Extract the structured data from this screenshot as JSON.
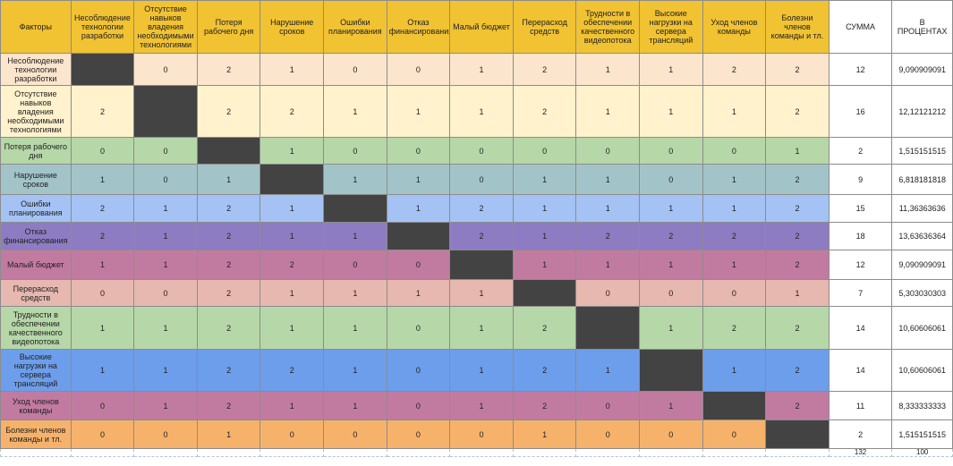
{
  "table": {
    "factors_header": "Факторы",
    "columns": [
      "Несоблюдение технологии разработки",
      "Отсутствие навыков владения необходимыми технологиями",
      "Потеря рабочего дня",
      "Нарушение сроков",
      "Ошибки планирования",
      "Отказ финансирования",
      "Малый бюджет",
      "Перерасход средств",
      "Трудности в обеспечении качественного видеопотока",
      "Высокие нагрузки на сервера трансляций",
      "Уход членов команды",
      "Болезни членов команды и тл."
    ],
    "sum_header": "СУММА",
    "percent_header": "В ПРОЦЕНТАХ",
    "rows": [
      {
        "label": "Несоблюдение технологии разработки",
        "color": "#fce5cd",
        "cells": [
          "",
          "0",
          "2",
          "1",
          "0",
          "0",
          "1",
          "2",
          "1",
          "1",
          "2",
          "2"
        ],
        "sum": "12",
        "percent": "9,090909091"
      },
      {
        "label": "Отсутствие навыков владения необходимыми технологиями",
        "color": "#fff2cc",
        "cells": [
          "2",
          "",
          "2",
          "2",
          "1",
          "1",
          "1",
          "2",
          "1",
          "1",
          "1",
          "2"
        ],
        "sum": "16",
        "percent": "12,12121212"
      },
      {
        "label": "Потеря рабочего дня",
        "color": "#b6d7a8",
        "cells": [
          "0",
          "0",
          "",
          "1",
          "0",
          "0",
          "0",
          "0",
          "0",
          "0",
          "0",
          "1"
        ],
        "sum": "2",
        "percent": "1,515151515"
      },
      {
        "label": "Нарушение сроков",
        "color": "#a2c4c9",
        "cells": [
          "1",
          "0",
          "1",
          "",
          "1",
          "1",
          "0",
          "1",
          "1",
          "0",
          "1",
          "2"
        ],
        "sum": "9",
        "percent": "6,818181818"
      },
      {
        "label": "Ошибки планирования",
        "color": "#a4c2f4",
        "cells": [
          "2",
          "1",
          "2",
          "1",
          "",
          "1",
          "2",
          "1",
          "1",
          "1",
          "1",
          "2"
        ],
        "sum": "15",
        "percent": "11,36363636"
      },
      {
        "label": "Отказ финансирования",
        "color": "#8e7cc3",
        "cells": [
          "2",
          "1",
          "2",
          "1",
          "1",
          "",
          "2",
          "1",
          "2",
          "2",
          "2",
          "2"
        ],
        "sum": "18",
        "percent": "13,63636364"
      },
      {
        "label": "Малый бюджет",
        "color": "#c27ba0",
        "cells": [
          "1",
          "1",
          "2",
          "2",
          "0",
          "0",
          "",
          "1",
          "1",
          "1",
          "1",
          "2"
        ],
        "sum": "12",
        "percent": "9,090909091"
      },
      {
        "label": "Перерасход средств",
        "color": "#e6b8af",
        "cells": [
          "0",
          "0",
          "2",
          "1",
          "1",
          "1",
          "1",
          "",
          "0",
          "0",
          "0",
          "1"
        ],
        "sum": "7",
        "percent": "5,303030303"
      },
      {
        "label": "Трудности в обеспечении качественного видеопотока",
        "color": "#b6d7a8",
        "cells": [
          "1",
          "1",
          "2",
          "1",
          "1",
          "0",
          "1",
          "2",
          "",
          "1",
          "2",
          "2"
        ],
        "sum": "14",
        "percent": "10,60606061"
      },
      {
        "label": "Высокие нагрузки на сервера трансляций",
        "color": "#6d9eeb",
        "cells": [
          "1",
          "1",
          "2",
          "2",
          "1",
          "0",
          "1",
          "2",
          "1",
          "",
          "1",
          "2"
        ],
        "sum": "14",
        "percent": "10,60606061"
      },
      {
        "label": "Уход членов команды",
        "color": "#c27ba0",
        "cells": [
          "0",
          "1",
          "2",
          "1",
          "1",
          "0",
          "1",
          "2",
          "0",
          "1",
          "",
          "2"
        ],
        "sum": "11",
        "percent": "8,333333333"
      },
      {
        "label": "Болезни членов команды и тл.",
        "color": "#f6b26b",
        "cells": [
          "0",
          "0",
          "1",
          "0",
          "0",
          "0",
          "0",
          "1",
          "0",
          "0",
          "0",
          ""
        ],
        "sum": "2",
        "percent": "1,515151515"
      }
    ],
    "total_sum": "132",
    "total_percent": "100"
  },
  "colors": {
    "header": "#f1c232",
    "diagonal": "#434343",
    "gridline": "#8c8c8c"
  }
}
